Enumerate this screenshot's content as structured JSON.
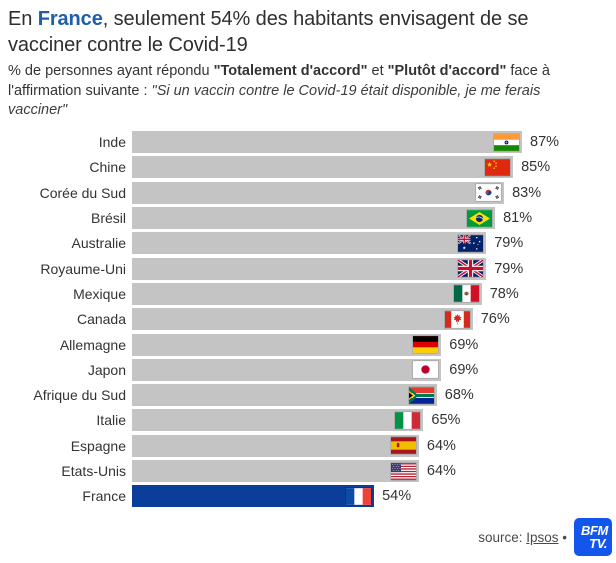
{
  "title": {
    "prefix": "En ",
    "highlight": "France",
    "suffix": ", seulement 54% des habitants envisagent de se vacciner contre le Covid-19"
  },
  "subtitle": {
    "parts": [
      {
        "text": "% de personnes ayant répondu ",
        "style": "normal"
      },
      {
        "text": "\"Totalement d'accord\"",
        "style": "bold"
      },
      {
        "text": " et ",
        "style": "normal"
      },
      {
        "text": "\"Plutôt d'accord\"",
        "style": "bold"
      },
      {
        "text": " face à l'affirmation suivante : ",
        "style": "normal"
      },
      {
        "text": "\"Si un vaccin contre le Covid-19 était disponible, je me ferais vacciner\"",
        "style": "italic"
      }
    ]
  },
  "chart_data": {
    "type": "bar",
    "orientation": "horizontal",
    "unit": "%",
    "xlim": [
      0,
      87
    ],
    "grid": false,
    "value_labels": "outside-right",
    "highlight_category": "France",
    "colors": {
      "bar_default": "#c4c4c4",
      "bar_highlight": "#0b3d9b"
    },
    "rows": [
      {
        "label": "Inde",
        "value": 87,
        "display": "87%",
        "flag": "india"
      },
      {
        "label": "Chine",
        "value": 85,
        "display": "85%",
        "flag": "china"
      },
      {
        "label": "Corée du Sud",
        "value": 83,
        "display": "83%",
        "flag": "south-korea"
      },
      {
        "label": "Brésil",
        "value": 81,
        "display": "81%",
        "flag": "brazil"
      },
      {
        "label": "Australie",
        "value": 79,
        "display": "79%",
        "flag": "australia"
      },
      {
        "label": "Royaume-Uni",
        "value": 79,
        "display": "79%",
        "flag": "united-kingdom"
      },
      {
        "label": "Mexique",
        "value": 78,
        "display": "78%",
        "flag": "mexico"
      },
      {
        "label": "Canada",
        "value": 76,
        "display": "76%",
        "flag": "canada"
      },
      {
        "label": "Allemagne",
        "value": 69,
        "display": "69%",
        "flag": "germany"
      },
      {
        "label": "Japon",
        "value": 69,
        "display": "69%",
        "flag": "japan"
      },
      {
        "label": "Afrique du Sud",
        "value": 68,
        "display": "68%",
        "flag": "south-africa"
      },
      {
        "label": "Italie",
        "value": 65,
        "display": "65%",
        "flag": "italy"
      },
      {
        "label": "Espagne",
        "value": 64,
        "display": "64%",
        "flag": "spain"
      },
      {
        "label": "Etats-Unis",
        "value": 64,
        "display": "64%",
        "flag": "united-states"
      },
      {
        "label": "France",
        "value": 54,
        "display": "54%",
        "flag": "france"
      }
    ]
  },
  "source": {
    "prefix": "source: ",
    "link_text": "Ipsos",
    "separator": "•"
  },
  "logo": {
    "line1": "BFM",
    "line2": "TV.",
    "color": "#1356ec"
  }
}
